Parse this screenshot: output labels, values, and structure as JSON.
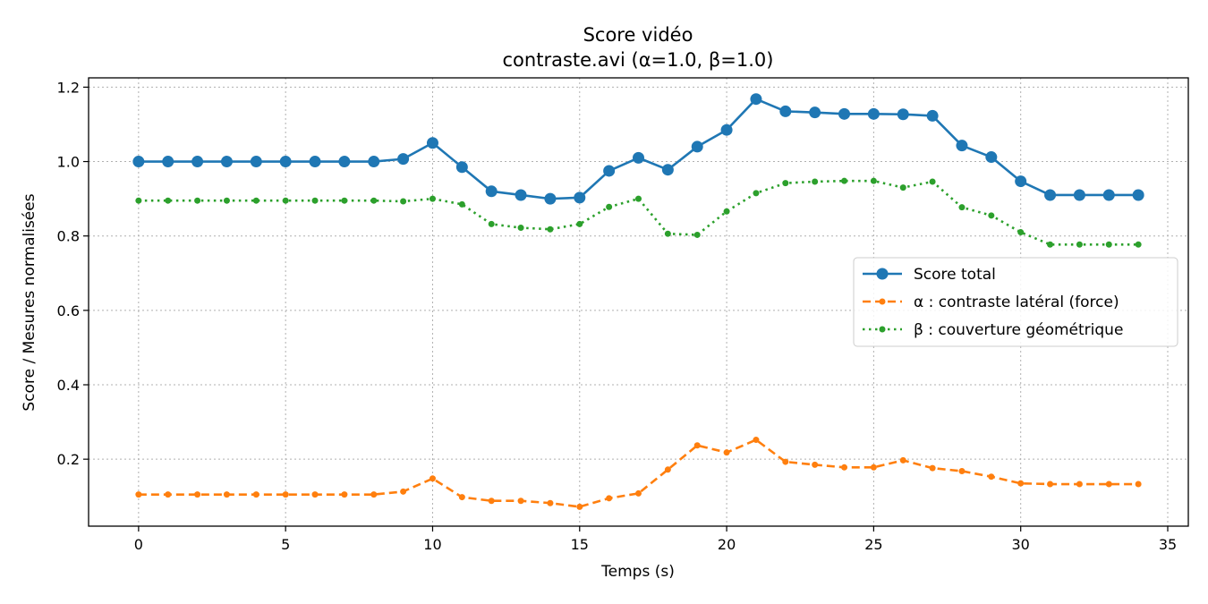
{
  "chart_data": {
    "type": "line",
    "title": "Score vidéo",
    "subtitle": "contraste.avi (α=1.0, β=1.0)",
    "xlabel": "Temps (s)",
    "ylabel": "Score / Mesures normalisées",
    "xlim": [
      -1.7,
      35.7
    ],
    "ylim": [
      0.02,
      1.225
    ],
    "xticks": [
      0,
      5,
      10,
      15,
      20,
      25,
      30,
      35
    ],
    "yticks": [
      0.2,
      0.4,
      0.6,
      0.8,
      1.0,
      1.2
    ],
    "x_tick_labels": [
      "0",
      "5",
      "10",
      "15",
      "20",
      "25",
      "30",
      "35"
    ],
    "y_tick_labels": [
      "0.2",
      "0.4",
      "0.6",
      "0.8",
      "1.0",
      "1.2"
    ],
    "grid": true,
    "legend_position": "center-right",
    "x": [
      0,
      1,
      2,
      3,
      4,
      5,
      6,
      7,
      8,
      9,
      10,
      11,
      12,
      13,
      14,
      15,
      16,
      17,
      18,
      19,
      20,
      21,
      22,
      23,
      24,
      25,
      26,
      27,
      28,
      29,
      30,
      31,
      32,
      33,
      34
    ],
    "series": [
      {
        "name": "Score total",
        "color": "#1f77b4",
        "style": "solid",
        "marker": "circle",
        "values": [
          1.0,
          1.0,
          1.0,
          1.0,
          1.0,
          1.0,
          1.0,
          1.0,
          1.0,
          1.007,
          1.05,
          0.985,
          0.92,
          0.91,
          0.9,
          0.903,
          0.975,
          1.01,
          0.978,
          1.04,
          1.085,
          1.168,
          1.135,
          1.132,
          1.128,
          1.128,
          1.127,
          1.123,
          1.043,
          1.012,
          0.947,
          0.91,
          0.91,
          0.91,
          0.91
        ]
      },
      {
        "name": "α : contraste latéral (force)",
        "color": "#ff7f0e",
        "style": "dashed",
        "marker": "dot",
        "values": [
          0.105,
          0.105,
          0.105,
          0.105,
          0.105,
          0.105,
          0.105,
          0.105,
          0.105,
          0.113,
          0.148,
          0.098,
          0.088,
          0.088,
          0.082,
          0.072,
          0.095,
          0.108,
          0.172,
          0.237,
          0.218,
          0.252,
          0.193,
          0.185,
          0.178,
          0.178,
          0.197,
          0.176,
          0.168,
          0.153,
          0.135,
          0.133,
          0.133,
          0.133,
          0.133
        ]
      },
      {
        "name": "β : couverture géométrique",
        "color": "#2ca02c",
        "style": "dotted",
        "marker": "dot",
        "values": [
          0.895,
          0.895,
          0.895,
          0.895,
          0.895,
          0.895,
          0.895,
          0.895,
          0.895,
          0.893,
          0.9,
          0.885,
          0.832,
          0.822,
          0.818,
          0.832,
          0.878,
          0.9,
          0.806,
          0.803,
          0.866,
          0.915,
          0.942,
          0.946,
          0.948,
          0.948,
          0.93,
          0.946,
          0.877,
          0.855,
          0.81,
          0.777,
          0.777,
          0.777,
          0.777
        ]
      }
    ]
  }
}
